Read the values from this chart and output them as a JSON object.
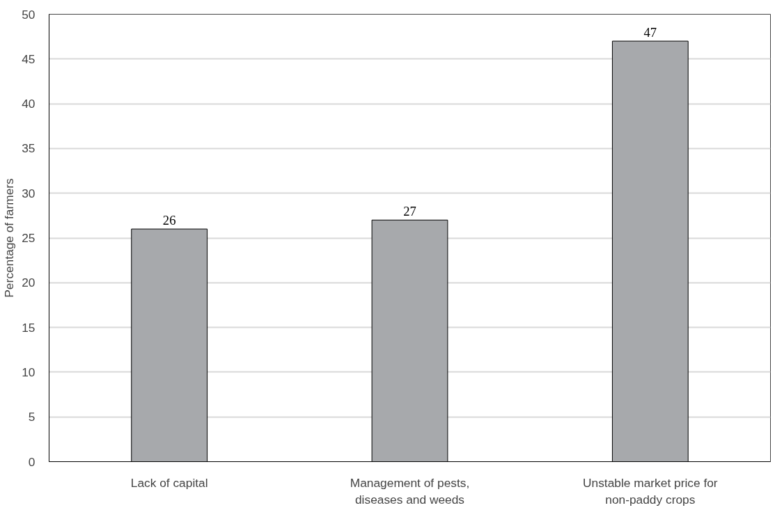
{
  "chart_data": {
    "type": "bar",
    "ylabel": "Percentage of farmers",
    "categories": [
      "Lack of capital",
      "Management of pests, diseases and weeds",
      "Unstable market price for non-paddy crops"
    ],
    "values": [
      26,
      27,
      47
    ],
    "color": "#a7a9ac",
    "ylim": [
      0,
      50
    ],
    "yticks": [
      0,
      5,
      10,
      15,
      20,
      25,
      30,
      35,
      40,
      45,
      50
    ],
    "grid": "y",
    "data_labels": true
  }
}
